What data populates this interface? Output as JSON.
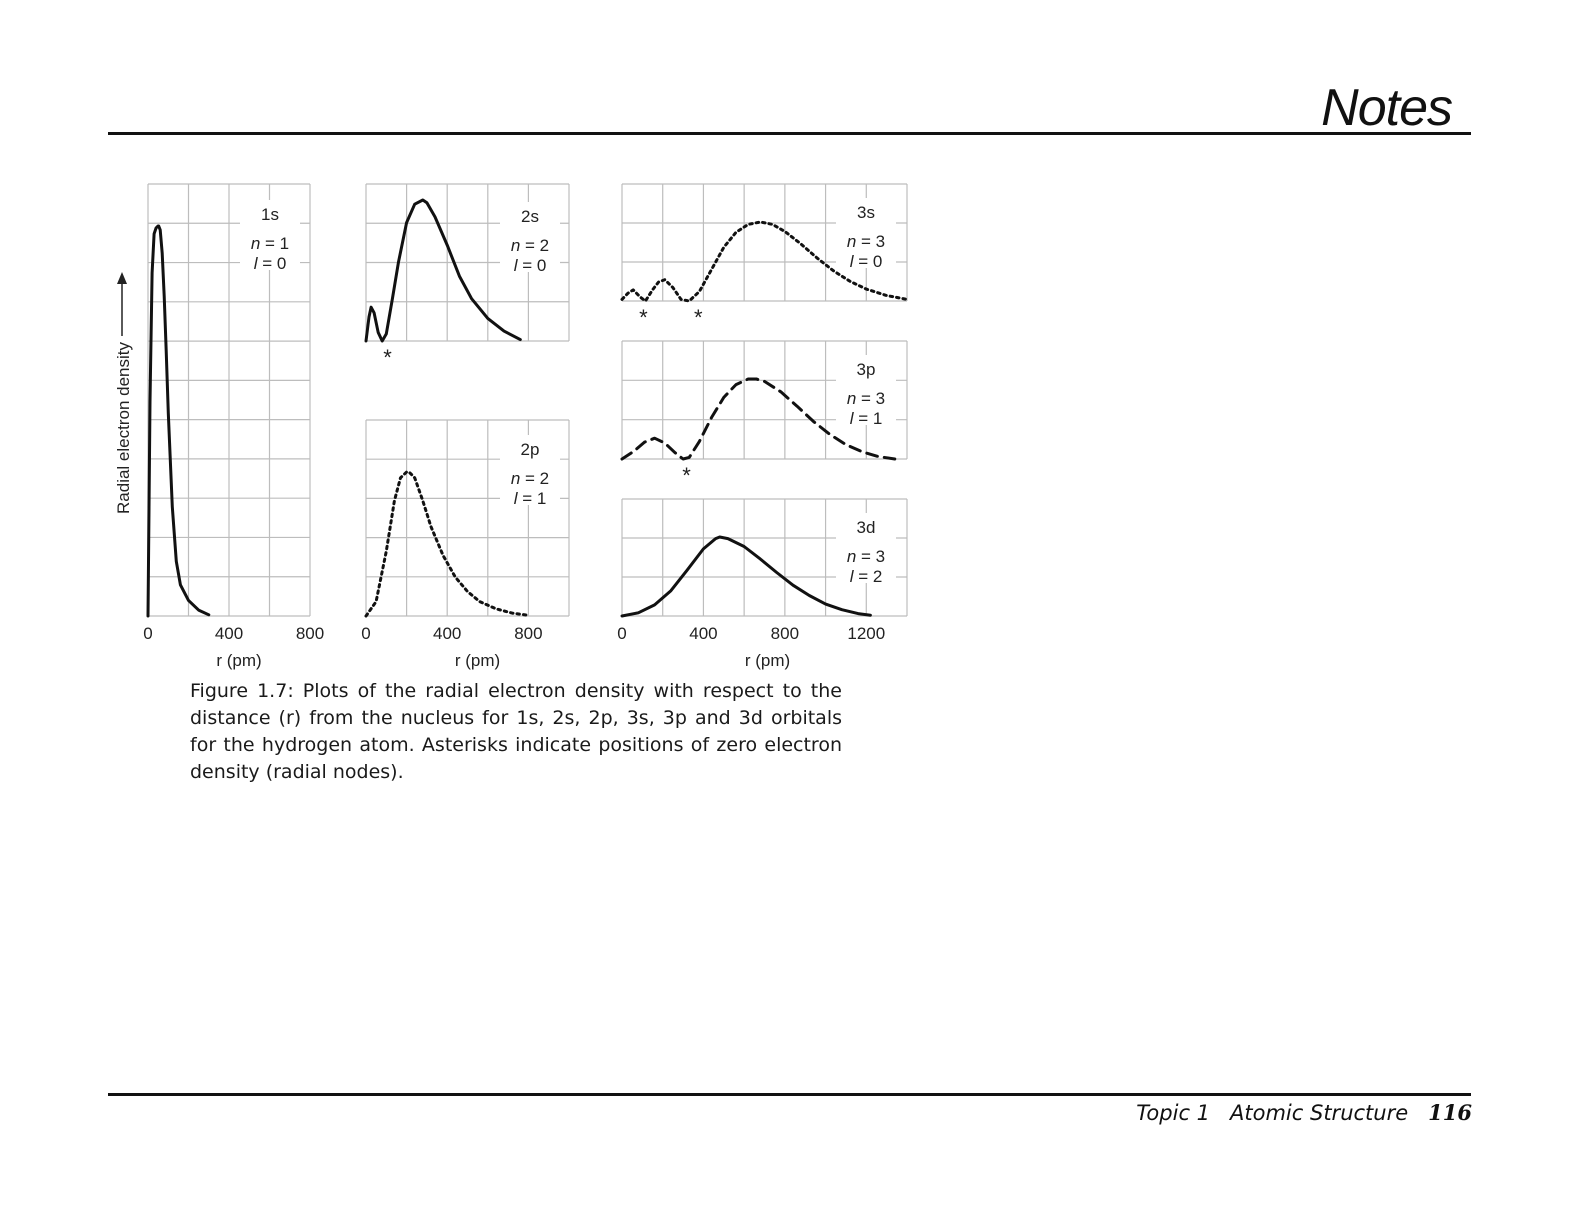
{
  "header": {
    "title": "Notes"
  },
  "figure": {
    "y_axis_label": "Radial electron density",
    "x_axis_label": "r (pm)",
    "caption": "Figure 1.7: Plots of the radial electron density with respect to the distance (r) from the nucleus for 1s, 2s, 2p, 3s, 3p and 3d orbitals for the hydrogen atom. Asterisks indicate positions of zero electron density (radial nodes)."
  },
  "footer": {
    "topic": "Topic 1",
    "section": "Atomic Structure",
    "page": "116"
  },
  "chart_data": [
    {
      "type": "line",
      "orbital": "1s",
      "n": "1",
      "l": "0",
      "line_style": "solid",
      "xlim": [
        0,
        800
      ],
      "x_ticks": [
        "0",
        "400",
        "800"
      ],
      "xlabel": "r (pm)",
      "ylabel": "Radial electron density",
      "x": [
        0,
        10,
        20,
        30,
        40,
        50,
        53,
        60,
        70,
        80,
        90,
        100,
        120,
        140,
        160,
        200,
        250,
        300
      ],
      "y": [
        0,
        0.55,
        0.88,
        0.98,
        0.995,
        1.0,
        1.0,
        0.99,
        0.93,
        0.82,
        0.68,
        0.52,
        0.28,
        0.14,
        0.08,
        0.04,
        0.015,
        0.003
      ],
      "nodes": []
    },
    {
      "type": "line",
      "orbital": "2s",
      "n": "2",
      "l": "0",
      "line_style": "solid",
      "xlim": [
        0,
        1000
      ],
      "x_ticks": [],
      "xlabel": "",
      "x": [
        0,
        15,
        25,
        40,
        60,
        80,
        100,
        130,
        160,
        200,
        240,
        280,
        300,
        340,
        400,
        460,
        520,
        600,
        680,
        760
      ],
      "y": [
        0,
        0.17,
        0.24,
        0.2,
        0.06,
        0.0,
        0.05,
        0.3,
        0.56,
        0.84,
        0.97,
        1.0,
        0.98,
        0.88,
        0.68,
        0.46,
        0.3,
        0.16,
        0.07,
        0.01
      ],
      "nodes": [
        106
      ]
    },
    {
      "type": "line",
      "orbital": "2p",
      "n": "2",
      "l": "1",
      "line_style": "dotted",
      "xlim": [
        0,
        1000
      ],
      "x_ticks": [
        "0",
        "400",
        "800"
      ],
      "xlabel": "r (pm)",
      "x": [
        0,
        50,
        100,
        140,
        170,
        200,
        212,
        240,
        280,
        320,
        380,
        440,
        500,
        560,
        640,
        720,
        800
      ],
      "y": [
        0,
        0.1,
        0.45,
        0.8,
        0.96,
        1.0,
        1.0,
        0.96,
        0.8,
        0.62,
        0.42,
        0.27,
        0.17,
        0.1,
        0.05,
        0.02,
        0.005
      ],
      "nodes": []
    },
    {
      "type": "line",
      "orbital": "3s",
      "n": "3",
      "l": "0",
      "line_style": "dotted",
      "xlim": [
        0,
        1400
      ],
      "x_ticks": [],
      "xlabel": "",
      "x": [
        0,
        30,
        55,
        90,
        115,
        150,
        180,
        210,
        250,
        290,
        330,
        380,
        440,
        500,
        560,
        620,
        680,
        740,
        800,
        880,
        960,
        1040,
        1120,
        1200,
        1300,
        1400
      ],
      "y": [
        0.02,
        0.1,
        0.14,
        0.05,
        0.0,
        0.14,
        0.24,
        0.27,
        0.17,
        0.02,
        0.0,
        0.12,
        0.4,
        0.68,
        0.87,
        0.97,
        1.0,
        0.97,
        0.88,
        0.72,
        0.54,
        0.38,
        0.25,
        0.15,
        0.07,
        0.02
      ],
      "nodes": [
        105,
        375
      ]
    },
    {
      "type": "line",
      "orbital": "3p",
      "n": "3",
      "l": "1",
      "line_style": "dashed",
      "xlim": [
        0,
        1400
      ],
      "x_ticks": [],
      "xlabel": "",
      "x": [
        0,
        60,
        110,
        160,
        210,
        260,
        300,
        330,
        380,
        440,
        500,
        560,
        620,
        660,
        700,
        780,
        860,
        940,
        1020,
        1100,
        1180,
        1260,
        1340
      ],
      "y": [
        0.0,
        0.1,
        0.21,
        0.26,
        0.2,
        0.08,
        0.0,
        0.02,
        0.22,
        0.52,
        0.77,
        0.93,
        1.0,
        1.0,
        0.97,
        0.84,
        0.66,
        0.47,
        0.31,
        0.18,
        0.09,
        0.03,
        0.0
      ],
      "nodes": [
        317
      ]
    },
    {
      "type": "line",
      "orbital": "3d",
      "n": "3",
      "l": "2",
      "line_style": "solid",
      "xlim": [
        0,
        1400
      ],
      "x_ticks": [
        "0",
        "400",
        "800",
        "1200"
      ],
      "xlabel": "r (pm)",
      "x": [
        0,
        80,
        160,
        240,
        320,
        400,
        460,
        480,
        520,
        600,
        680,
        760,
        840,
        920,
        1000,
        1080,
        1160,
        1220
      ],
      "y": [
        0.0,
        0.04,
        0.14,
        0.32,
        0.58,
        0.85,
        0.98,
        1.0,
        0.98,
        0.88,
        0.72,
        0.55,
        0.39,
        0.26,
        0.15,
        0.08,
        0.03,
        0.01
      ],
      "nodes": []
    }
  ]
}
